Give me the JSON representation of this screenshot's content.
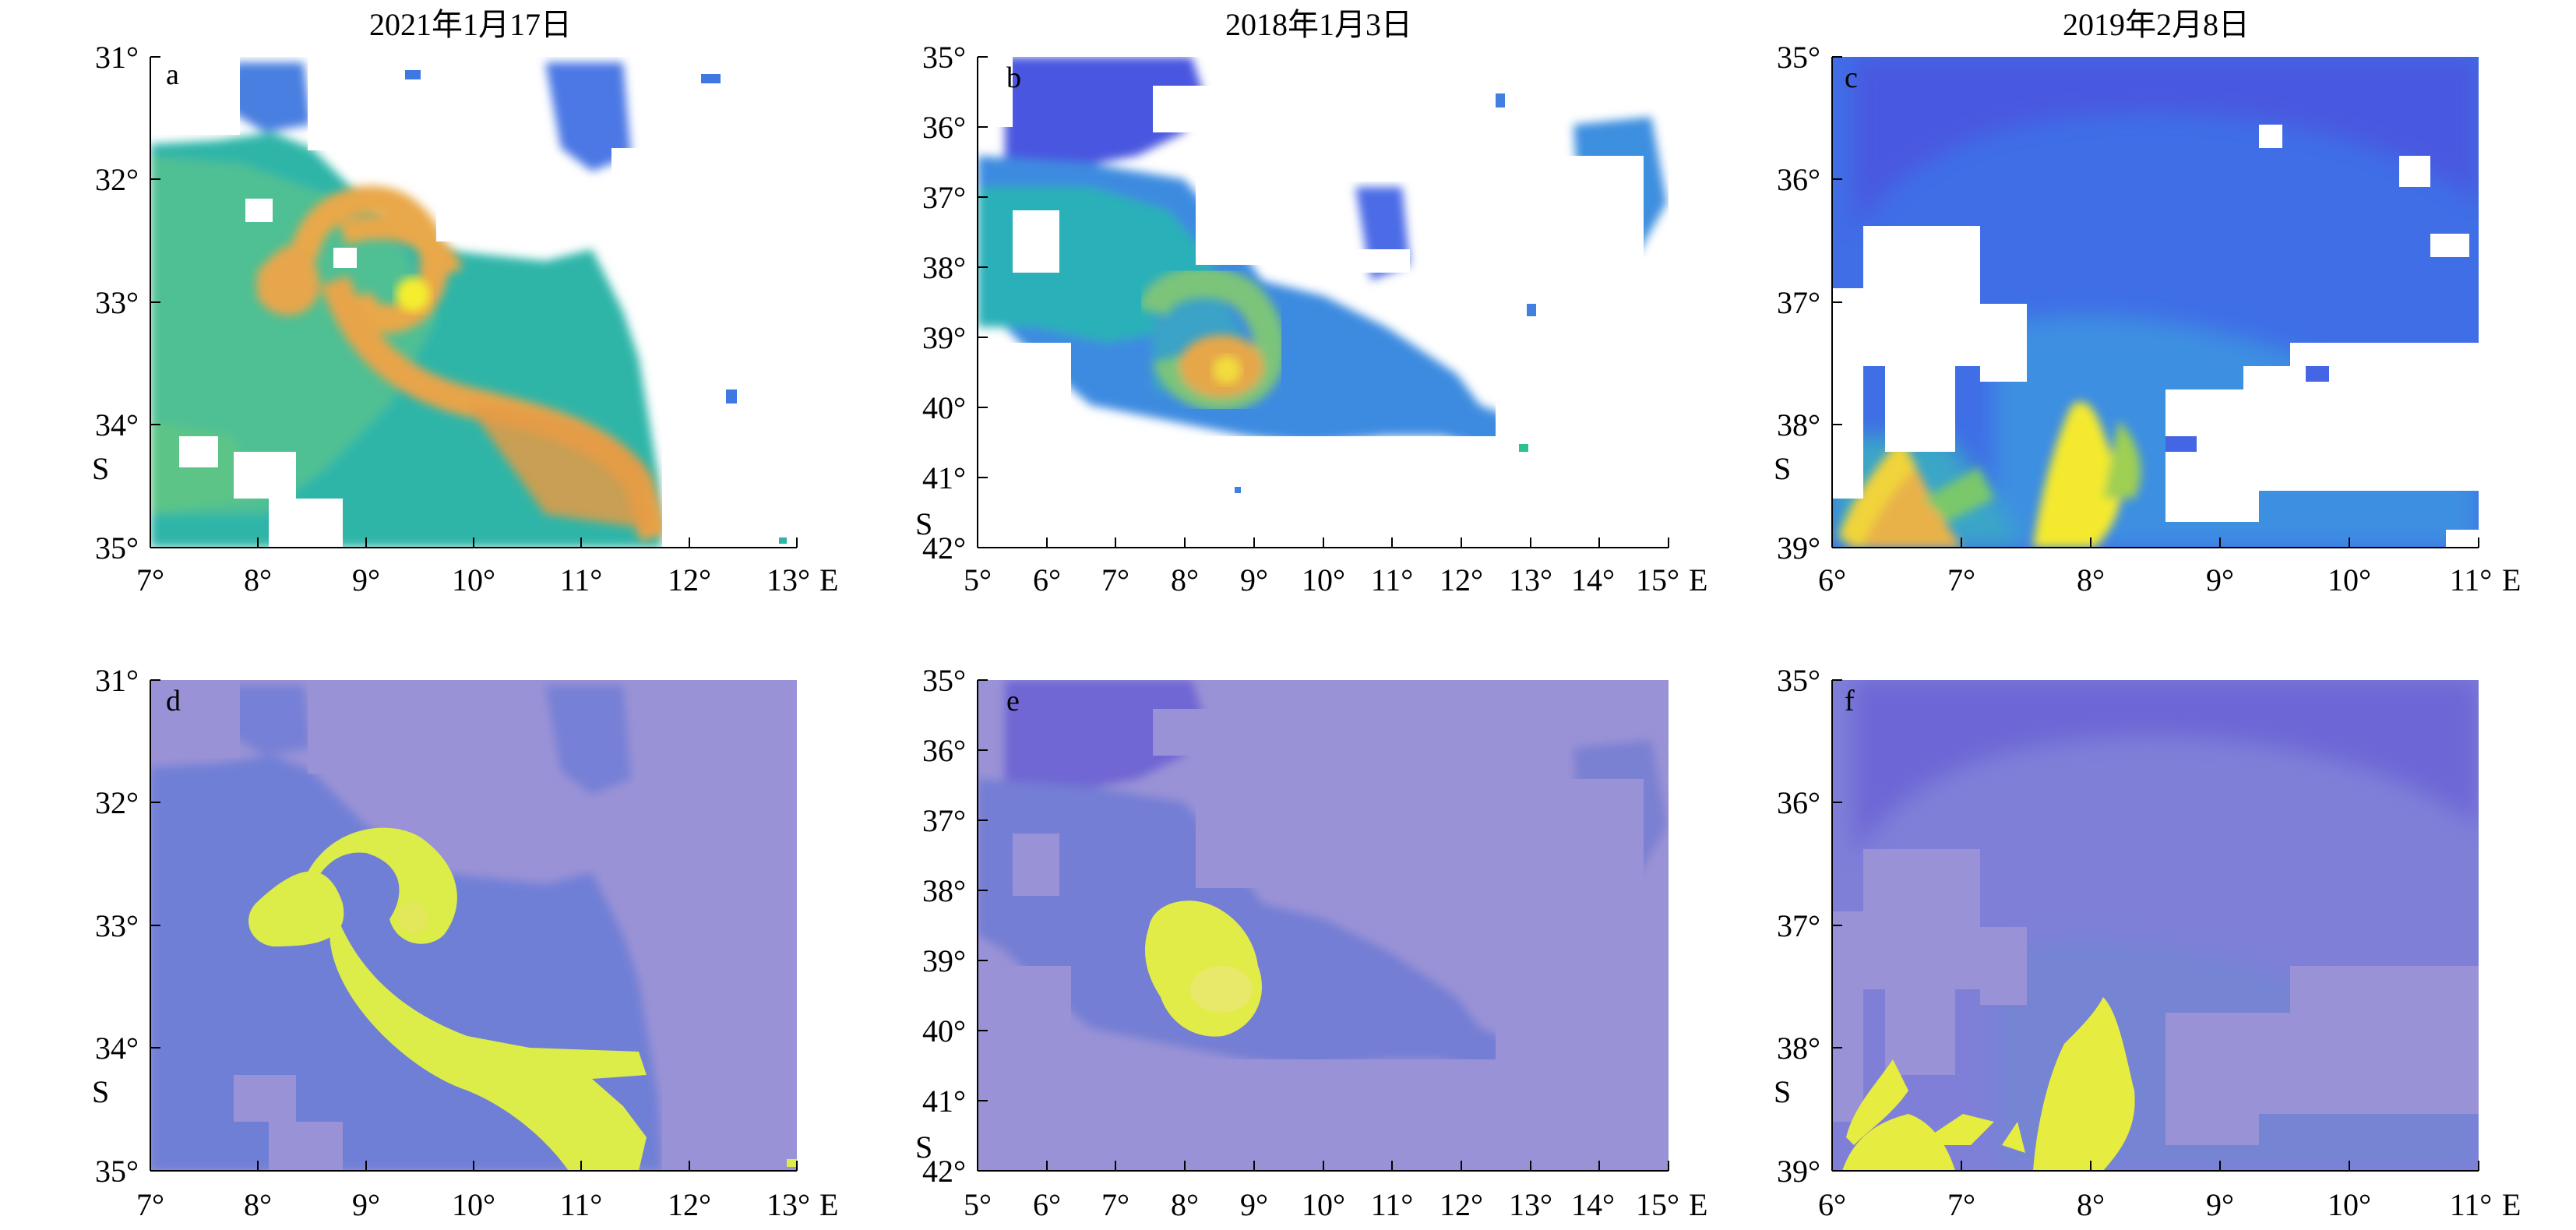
{
  "titles": [
    "2021年1月17日",
    "2018年1月3日",
    "2019年2月8日"
  ],
  "panels": [
    {
      "label": "a",
      "row": "top",
      "kind": "sst",
      "lat_labels": [
        "31°",
        "32°",
        "33°",
        "34°",
        "35°"
      ],
      "lon_labels": [
        "7°",
        "8°",
        "9°",
        "10°",
        "11°",
        "12°",
        "13°"
      ],
      "unit_lat": "S",
      "unit_lon": "E"
    },
    {
      "label": "b",
      "row": "top",
      "kind": "sst",
      "lat_labels": [
        "35°",
        "36°",
        "37°",
        "38°",
        "39°",
        "40°",
        "41°",
        "42°"
      ],
      "lon_labels": [
        "5°",
        "6°",
        "7°",
        "8°",
        "9°",
        "10°",
        "11°",
        "12°",
        "13°",
        "14°",
        "15°"
      ],
      "unit_lat": "S",
      "unit_lon": "E"
    },
    {
      "label": "c",
      "row": "top",
      "kind": "sst",
      "lat_labels": [
        "35°",
        "36°",
        "37°",
        "38°",
        "39°"
      ],
      "lon_labels": [
        "6°",
        "7°",
        "8°",
        "9°",
        "10°",
        "11°"
      ],
      "unit_lat": "S",
      "unit_lon": "E"
    },
    {
      "label": "d",
      "row": "bottom",
      "kind": "mask",
      "lat_labels": [
        "31°",
        "32°",
        "33°",
        "34°",
        "35°"
      ],
      "lon_labels": [
        "7°",
        "8°",
        "9°",
        "10°",
        "11°",
        "12°",
        "13°"
      ],
      "unit_lat": "S",
      "unit_lon": "E"
    },
    {
      "label": "e",
      "row": "bottom",
      "kind": "mask",
      "lat_labels": [
        "35°",
        "36°",
        "37°",
        "38°",
        "39°",
        "40°",
        "41°",
        "42°"
      ],
      "lon_labels": [
        "5°",
        "6°",
        "7°",
        "8°",
        "9°",
        "10°",
        "11°",
        "12°",
        "13°",
        "14°",
        "15°"
      ],
      "unit_lat": "S",
      "unit_lon": "E"
    },
    {
      "label": "f",
      "row": "bottom",
      "kind": "mask",
      "lat_labels": [
        "35°",
        "36°",
        "37°",
        "38°",
        "39°"
      ],
      "lon_labels": [
        "6°",
        "7°",
        "8°",
        "9°",
        "10°",
        "11°"
      ],
      "unit_lat": "S",
      "unit_lon": "E"
    }
  ],
  "colors": {
    "sst_blue": "#4a6ae6",
    "sst_teal": "#22b8b0",
    "sst_green": "#70c878",
    "sst_orange": "#e6a24a",
    "sst_yellow": "#f4ee30",
    "mask_background": "#9a92d6",
    "mask_water": "#6f7fd6",
    "mask_eddy": "#dcec48"
  }
}
